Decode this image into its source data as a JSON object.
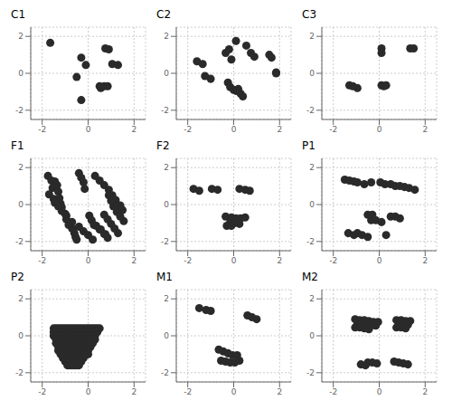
{
  "chart_data": [
    {
      "type": "scatter",
      "title": "C1",
      "color": "#2a2a2a",
      "grid": true,
      "xlim": [
        -2.5,
        2.5
      ],
      "ylim": [
        -2.5,
        2.5
      ],
      "xticks": [
        -2,
        0,
        2
      ],
      "yticks": [
        -2,
        0,
        2
      ],
      "x": [
        -1.65,
        -0.3,
        -0.1,
        -0.5,
        0.75,
        0.9,
        1.05,
        1.3,
        0.5,
        0.55,
        0.7,
        0.85,
        -0.3
      ],
      "y": [
        1.65,
        0.85,
        0.45,
        -0.2,
        1.35,
        1.3,
        0.5,
        0.45,
        -0.7,
        -0.8,
        -0.7,
        -0.7,
        -1.45
      ]
    },
    {
      "type": "scatter",
      "title": "C2",
      "color": "#2a2a2a",
      "grid": true,
      "xlim": [
        -2.5,
        2.5
      ],
      "ylim": [
        -2.5,
        2.5
      ],
      "xticks": [
        -2,
        0,
        2
      ],
      "yticks": [
        -2,
        0,
        2
      ],
      "x": [
        -1.6,
        -1.35,
        -1.25,
        -1.0,
        -0.35,
        -0.2,
        -0.1,
        0.1,
        0.55,
        0.75,
        0.9,
        1.55,
        1.65,
        1.85,
        -0.25,
        -0.15,
        0.0,
        0.1,
        0.2,
        0.3,
        0.4,
        1.85
      ],
      "y": [
        0.65,
        0.5,
        -0.15,
        -0.3,
        1.1,
        1.3,
        0.75,
        1.75,
        1.5,
        1.1,
        0.9,
        1.0,
        0.85,
        0.05,
        -0.5,
        -0.75,
        -0.9,
        -0.95,
        -0.85,
        -1.1,
        -1.25,
        0.0
      ]
    },
    {
      "type": "scatter",
      "title": "C3",
      "color": "#2a2a2a",
      "grid": true,
      "xlim": [
        -2.5,
        2.5
      ],
      "ylim": [
        -2.5,
        2.5
      ],
      "xticks": [
        -2,
        0,
        2
      ],
      "yticks": [
        -2,
        0,
        2
      ],
      "x": [
        0.1,
        0.1,
        1.35,
        1.5,
        -1.3,
        -1.15,
        -0.95,
        0.1,
        0.2,
        0.3
      ],
      "y": [
        1.35,
        1.1,
        1.35,
        1.35,
        -0.65,
        -0.7,
        -0.8,
        -0.65,
        -0.7,
        -0.65
      ]
    },
    {
      "type": "scatter",
      "title": "F1",
      "color": "#2a2a2a",
      "grid": true,
      "xlim": [
        -2.5,
        2.5
      ],
      "ylim": [
        -2.5,
        2.5
      ],
      "xticks": [
        -2,
        0,
        2
      ],
      "yticks": [
        -2,
        0,
        2
      ],
      "x": [
        -1.75,
        -1.6,
        -1.55,
        -1.45,
        -1.35,
        -1.3,
        -1.25,
        -1.2,
        -1.15,
        -1.0,
        -0.95,
        -0.85,
        -0.7,
        -0.6,
        -0.55,
        -0.5,
        -0.4,
        -0.3,
        -0.2,
        -0.15,
        -1.7,
        -1.5,
        -1.45,
        -1.3,
        -1.15,
        -0.95,
        -0.7,
        -0.4,
        -0.2,
        0.0,
        0.2,
        0.3,
        0.5,
        0.7,
        0.9,
        1.05,
        1.2,
        1.4,
        1.5,
        0.05,
        0.15,
        0.25,
        0.5,
        0.7,
        0.85,
        1.0,
        1.1,
        1.25,
        1.4,
        1.55,
        0.35,
        0.55,
        0.75,
        0.9,
        1.1,
        1.3,
        1.45,
        0.7,
        0.85,
        1.0,
        1.15,
        1.3
      ],
      "y": [
        1.55,
        1.3,
        0.9,
        1.25,
        1.05,
        0.7,
        0.35,
        0.05,
        -0.15,
        -0.5,
        -0.8,
        -1.1,
        -1.3,
        -1.55,
        -1.75,
        -1.9,
        1.7,
        1.45,
        1.2,
        0.85,
        0.55,
        0.3,
        0.1,
        -0.1,
        -0.35,
        -0.6,
        -0.95,
        -1.2,
        -1.45,
        -1.65,
        -1.9,
        1.55,
        1.3,
        1.05,
        0.8,
        0.5,
        0.25,
        -0.05,
        -0.3,
        -0.6,
        -0.85,
        -1.1,
        -1.35,
        -1.6,
        -1.8,
        0.2,
        -0.1,
        -0.4,
        -0.65,
        -0.9,
        -1.15,
        -1.35,
        -1.6,
        0.5,
        0.2,
        -0.05,
        -0.3,
        -0.55,
        -0.8,
        -1.05,
        -1.3,
        -1.55
      ]
    },
    {
      "type": "scatter",
      "title": "F2",
      "color": "#2a2a2a",
      "grid": true,
      "xlim": [
        -2.5,
        2.5
      ],
      "ylim": [
        -2.5,
        2.5
      ],
      "xticks": [
        -2,
        0,
        2
      ],
      "yticks": [
        -2,
        0,
        2
      ],
      "x": [
        -1.75,
        -1.5,
        -0.95,
        -0.7,
        0.25,
        0.5,
        0.7,
        -0.35,
        -0.1,
        0.1,
        0.3,
        0.5,
        -0.15,
        0.05,
        0.25,
        -0.3,
        -0.1
      ],
      "y": [
        0.85,
        0.75,
        0.85,
        0.8,
        0.85,
        0.8,
        0.75,
        -0.65,
        -0.7,
        -0.75,
        -0.75,
        -0.7,
        -0.95,
        -1.0,
        -1.05,
        -1.15,
        -1.15
      ]
    },
    {
      "type": "scatter",
      "title": "P1",
      "color": "#2a2a2a",
      "grid": true,
      "xlim": [
        -2.5,
        2.5
      ],
      "ylim": [
        -2.5,
        2.5
      ],
      "xticks": [
        -2,
        0,
        2
      ],
      "yticks": [
        -2,
        0,
        2
      ],
      "x": [
        -1.5,
        -1.3,
        -1.1,
        -0.95,
        -0.65,
        -0.35,
        0.05,
        0.25,
        0.5,
        0.7,
        0.9,
        1.1,
        1.3,
        1.55,
        -0.5,
        -0.3,
        0.5,
        0.7,
        0.9,
        -0.95,
        -0.75,
        -0.5,
        -1.35,
        -1.1,
        0.3,
        -0.35,
        -0.15,
        0.1
      ],
      "y": [
        1.35,
        1.3,
        1.25,
        1.2,
        1.1,
        1.2,
        1.2,
        1.1,
        1.1,
        1.0,
        1.0,
        0.95,
        0.9,
        0.8,
        -0.55,
        -0.55,
        -0.65,
        -0.65,
        -0.75,
        -1.55,
        -1.65,
        -1.75,
        -1.55,
        -1.65,
        -1.65,
        -0.85,
        -0.85,
        -0.95
      ]
    },
    {
      "type": "scatter",
      "title": "P2",
      "color": "#2a2a2a",
      "grid": true,
      "xlim": [
        -2.5,
        2.5
      ],
      "ylim": [
        -2.5,
        2.5
      ],
      "xticks": [
        -2,
        0,
        2
      ],
      "yticks": [
        -2,
        0,
        2
      ],
      "x": [
        -1.5,
        -1.4,
        -1.3,
        -1.2,
        -1.1,
        -1.0,
        -0.9,
        -0.8,
        -0.7,
        -0.6,
        -0.5,
        -0.4,
        -0.3,
        -0.2,
        -0.1,
        0.0,
        0.1,
        0.2,
        0.3,
        0.4,
        0.5,
        -1.5,
        -1.4,
        -1.3,
        -1.2,
        -1.1,
        -1.0,
        -0.9,
        -0.8,
        -0.7,
        -0.6,
        -0.5,
        -0.4,
        -0.3,
        -0.2,
        -0.1,
        0.0,
        0.1,
        0.2,
        0.3,
        0.4,
        -1.5,
        -1.4,
        -1.3,
        -1.2,
        -1.1,
        -1.0,
        -0.9,
        -0.8,
        -0.7,
        -0.6,
        -0.5,
        -0.4,
        -0.3,
        -0.2,
        -0.1,
        0.0,
        0.1,
        0.2,
        0.3,
        -1.4,
        -1.3,
        -1.2,
        -1.1,
        -1.0,
        -0.9,
        -0.8,
        -0.7,
        -0.6,
        -0.5,
        -0.4,
        -0.3,
        -0.2,
        -0.1,
        0.0,
        0.1,
        0.2,
        0.3,
        -1.4,
        -1.3,
        -1.2,
        -1.1,
        -1.0,
        -0.9,
        -0.8,
        -0.7,
        -0.6,
        -0.5,
        -0.4,
        -0.3,
        -0.2,
        -0.1,
        0.0,
        0.1,
        0.2,
        -1.3,
        -1.2,
        -1.1,
        -1.0,
        -0.9,
        -0.8,
        -0.7,
        -0.6,
        -0.5,
        -0.4,
        -0.3,
        -0.2,
        -0.1,
        0.0,
        0.1,
        -1.3,
        -1.2,
        -1.1,
        -1.0,
        -0.9,
        -0.8,
        -0.7,
        -0.6,
        -0.5,
        -0.4,
        -0.3,
        -0.2,
        -0.1,
        0.0,
        -1.2,
        -1.1,
        -1.0,
        -0.9,
        -0.8,
        -0.7,
        -0.6,
        -0.5,
        -0.4,
        -0.3,
        -0.2,
        -0.1,
        0.0,
        -1.1,
        -1.0,
        -0.9,
        -0.8,
        -0.7,
        -0.6,
        -0.5,
        -0.4,
        -0.3,
        -0.2,
        -1.0,
        -0.9,
        -0.8,
        -0.7,
        -0.6,
        -0.5,
        -0.4,
        -0.3,
        -0.9,
        -0.8,
        -0.7,
        -0.6,
        -0.5,
        -0.4
      ],
      "y": [
        0.4,
        0.4,
        0.4,
        0.4,
        0.4,
        0.4,
        0.4,
        0.4,
        0.4,
        0.4,
        0.4,
        0.4,
        0.4,
        0.4,
        0.4,
        0.4,
        0.4,
        0.4,
        0.4,
        0.4,
        0.4,
        0.2,
        0.2,
        0.2,
        0.2,
        0.2,
        0.2,
        0.2,
        0.2,
        0.2,
        0.2,
        0.2,
        0.2,
        0.2,
        0.2,
        0.2,
        0.2,
        0.2,
        0.2,
        0.2,
        0.2,
        0.0,
        0.0,
        0.0,
        0.0,
        0.0,
        0.0,
        0.0,
        0.0,
        0.0,
        0.0,
        0.0,
        0.0,
        0.0,
        0.0,
        0.0,
        0.0,
        0.0,
        0.0,
        0.0,
        -0.2,
        -0.2,
        -0.2,
        -0.2,
        -0.2,
        -0.2,
        -0.2,
        -0.2,
        -0.2,
        -0.2,
        -0.2,
        -0.2,
        -0.2,
        -0.2,
        -0.2,
        -0.2,
        -0.2,
        -0.2,
        -0.4,
        -0.4,
        -0.4,
        -0.4,
        -0.4,
        -0.4,
        -0.4,
        -0.4,
        -0.4,
        -0.4,
        -0.4,
        -0.4,
        -0.4,
        -0.4,
        -0.4,
        -0.4,
        -0.4,
        -0.6,
        -0.6,
        -0.6,
        -0.6,
        -0.6,
        -0.6,
        -0.6,
        -0.6,
        -0.6,
        -0.6,
        -0.6,
        -0.6,
        -0.6,
        -0.6,
        -0.6,
        -0.8,
        -0.8,
        -0.8,
        -0.8,
        -0.8,
        -0.8,
        -0.8,
        -0.8,
        -0.8,
        -0.8,
        -0.8,
        -0.8,
        -0.8,
        -0.8,
        -1.0,
        -1.0,
        -1.0,
        -1.0,
        -1.0,
        -1.0,
        -1.0,
        -1.0,
        -1.0,
        -1.0,
        -1.0,
        -1.0,
        -1.0,
        -1.2,
        -1.2,
        -1.2,
        -1.2,
        -1.2,
        -1.2,
        -1.2,
        -1.2,
        -1.2,
        -1.2,
        -1.4,
        -1.4,
        -1.4,
        -1.4,
        -1.4,
        -1.4,
        -1.4,
        -1.4,
        -1.6,
        -1.6,
        -1.6,
        -1.6,
        -1.6,
        -1.6
      ]
    },
    {
      "type": "scatter",
      "title": "M1",
      "color": "#2a2a2a",
      "grid": true,
      "xlim": [
        -2.5,
        2.5
      ],
      "ylim": [
        -2.5,
        2.5
      ],
      "xticks": [
        -2,
        0,
        2
      ],
      "yticks": [
        -2,
        0,
        2
      ],
      "x": [
        -1.5,
        -1.2,
        -1.0,
        0.6,
        0.8,
        1.0,
        -0.65,
        -0.45,
        -0.25,
        -0.05,
        0.15,
        -0.55,
        -0.35,
        -0.15,
        0.05,
        0.25
      ],
      "y": [
        1.5,
        1.4,
        1.35,
        1.1,
        1.0,
        0.9,
        -0.75,
        -0.85,
        -0.95,
        -1.05,
        -1.05,
        -1.35,
        -1.4,
        -1.45,
        -1.45,
        -1.35
      ]
    },
    {
      "type": "scatter",
      "title": "M2",
      "color": "#2a2a2a",
      "grid": true,
      "xlim": [
        -2.5,
        2.5
      ],
      "ylim": [
        -2.5,
        2.5
      ],
      "xticks": [
        -2,
        0,
        2
      ],
      "yticks": [
        -2,
        0,
        2
      ],
      "x": [
        -1.05,
        -0.85,
        -0.65,
        -0.45,
        -0.25,
        -0.05,
        -0.95,
        -0.75,
        -0.55,
        -0.35,
        -0.15,
        -1.05,
        -0.85,
        -0.65,
        -0.45,
        0.75,
        0.95,
        1.15,
        1.35,
        0.85,
        1.05,
        1.25,
        0.75,
        0.95,
        1.15,
        -0.5,
        -0.3,
        -0.1,
        0.65,
        0.85,
        1.05,
        1.25,
        -0.8,
        -0.6
      ],
      "y": [
        0.9,
        0.85,
        0.85,
        0.8,
        0.75,
        0.75,
        0.65,
        0.65,
        0.6,
        0.55,
        0.55,
        0.45,
        0.45,
        0.4,
        0.35,
        0.85,
        0.85,
        0.8,
        0.8,
        0.65,
        0.65,
        0.6,
        0.45,
        0.45,
        0.4,
        -1.45,
        -1.45,
        -1.5,
        -1.4,
        -1.45,
        -1.5,
        -1.55,
        -1.55,
        -1.6
      ]
    }
  ]
}
